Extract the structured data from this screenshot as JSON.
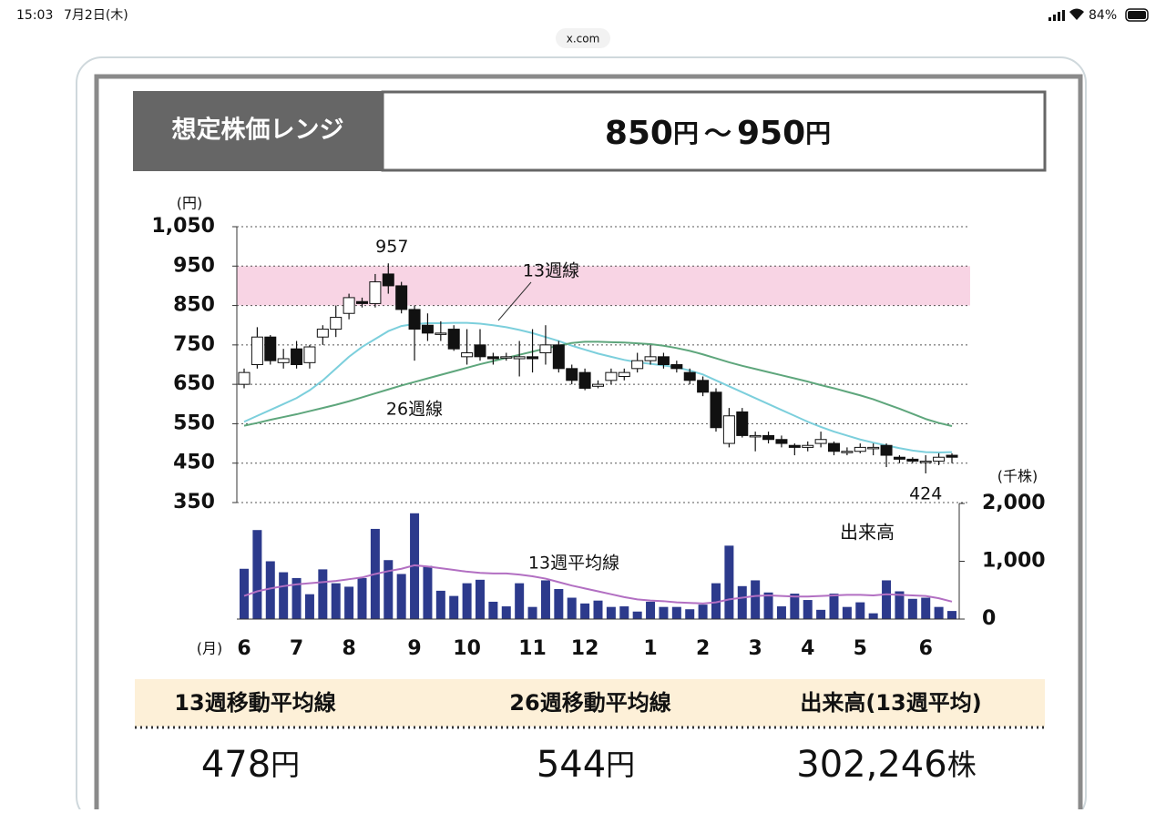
{
  "status_bar": {
    "time": "15:03",
    "date": "7月2日(木)",
    "battery": "84%"
  },
  "url": "x.com",
  "header": {
    "label": "想定株価レンジ",
    "low": "850",
    "low_unit": "円",
    "sep": "〜",
    "high": "950",
    "high_unit": "円"
  },
  "chart_data": [
    {
      "type": "candlestick",
      "y_unit": "(円)",
      "x_unit": "(月)",
      "categories": [
        "6",
        null,
        null,
        null,
        "7",
        null,
        null,
        null,
        "8",
        null,
        null,
        null,
        null,
        "9",
        null,
        null,
        null,
        "10",
        null,
        null,
        null,
        null,
        "11",
        null,
        null,
        null,
        "12",
        null,
        null,
        null,
        null,
        "1",
        null,
        null,
        null,
        "2",
        null,
        null,
        null,
        "3",
        null,
        null,
        null,
        "4",
        null,
        null,
        null,
        "5",
        null,
        null,
        null,
        null,
        "6",
        null,
        null
      ],
      "open": [
        650,
        700,
        770,
        705,
        740,
        705,
        770,
        790,
        830,
        860,
        855,
        930,
        900,
        840,
        800,
        780,
        790,
        720,
        750,
        720,
        720,
        715,
        720,
        730,
        750,
        690,
        680,
        645,
        660,
        670,
        690,
        710,
        720,
        700,
        680,
        660,
        630,
        500,
        580,
        520,
        520,
        510,
        495,
        490,
        500,
        500,
        480,
        480,
        490,
        495,
        465,
        460,
        455,
        455,
        470
      ],
      "close": [
        680,
        770,
        710,
        715,
        700,
        745,
        790,
        820,
        870,
        855,
        910,
        900,
        840,
        790,
        780,
        780,
        740,
        730,
        720,
        715,
        720,
        720,
        715,
        750,
        690,
        660,
        640,
        650,
        680,
        680,
        710,
        720,
        700,
        690,
        660,
        630,
        540,
        570,
        520,
        520,
        510,
        500,
        490,
        495,
        510,
        480,
        480,
        490,
        490,
        470,
        460,
        455,
        455,
        465,
        465
      ],
      "high": [
        690,
        795,
        775,
        740,
        760,
        750,
        800,
        850,
        880,
        870,
        930,
        957,
        910,
        850,
        830,
        810,
        800,
        790,
        790,
        730,
        730,
        760,
        790,
        800,
        760,
        700,
        690,
        660,
        690,
        690,
        730,
        750,
        730,
        710,
        690,
        670,
        640,
        590,
        590,
        530,
        530,
        520,
        500,
        505,
        530,
        505,
        490,
        500,
        500,
        500,
        470,
        465,
        470,
        475,
        475
      ],
      "low": [
        640,
        690,
        700,
        690,
        690,
        690,
        750,
        770,
        815,
        845,
        845,
        880,
        830,
        710,
        760,
        760,
        735,
        700,
        710,
        700,
        710,
        670,
        680,
        700,
        680,
        650,
        635,
        640,
        650,
        660,
        680,
        700,
        690,
        680,
        650,
        620,
        530,
        490,
        515,
        480,
        500,
        490,
        470,
        480,
        490,
        470,
        470,
        475,
        470,
        440,
        450,
        450,
        424,
        445,
        450
      ],
      "up_color": "#ffffff",
      "down_color": "#111111",
      "high_label": "957",
      "low_label": "424",
      "band": [
        850,
        950
      ],
      "band_color": "#f8d4e4",
      "series": [
        {
          "name": "13週線",
          "color": "#7ccfdc",
          "values": [
            555,
            570,
            585,
            600,
            615,
            635,
            660,
            690,
            720,
            745,
            765,
            785,
            798,
            803,
            805,
            805,
            806,
            806,
            804,
            800,
            795,
            788,
            780,
            770,
            760,
            748,
            738,
            728,
            720,
            712,
            706,
            702,
            698,
            693,
            685,
            675,
            660,
            645,
            630,
            615,
            600,
            585,
            570,
            555,
            542,
            530,
            520,
            510,
            502,
            495,
            488,
            482,
            478,
            477,
            478
          ]
        },
        {
          "name": "26週線",
          "color": "#5ea67c",
          "values": [
            545,
            552,
            560,
            567,
            574,
            582,
            590,
            598,
            607,
            617,
            627,
            637,
            647,
            656,
            665,
            674,
            683,
            692,
            701,
            709,
            717,
            725,
            733,
            741,
            748,
            755,
            758,
            758,
            757,
            756,
            754,
            752,
            748,
            742,
            735,
            726,
            716,
            706,
            697,
            689,
            681,
            673,
            665,
            657,
            648,
            640,
            631,
            622,
            612,
            600,
            588,
            575,
            562,
            552,
            544
          ]
        }
      ],
      "ylim": [
        350,
        1050
      ],
      "yticks": [
        350,
        450,
        550,
        650,
        750,
        850,
        950,
        {
          "value": 1050,
          "label": "1,050"
        }
      ],
      "grid": true
    },
    {
      "type": "bar",
      "title": "出来高",
      "y_unit": "(千株)",
      "values": [
        870,
        1540,
        1000,
        810,
        710,
        430,
        860,
        620,
        560,
        710,
        1560,
        1020,
        780,
        1830,
        920,
        490,
        400,
        620,
        680,
        300,
        220,
        620,
        210,
        670,
        520,
        370,
        270,
        320,
        210,
        220,
        130,
        300,
        210,
        210,
        170,
        250,
        620,
        1270,
        570,
        670,
        460,
        220,
        440,
        330,
        160,
        440,
        210,
        290,
        100,
        670,
        480,
        350,
        370,
        210,
        140
      ],
      "color": "#2c3a8c",
      "series": [
        {
          "name": "13週平均線",
          "color": "#b26fc2",
          "values": [
            400,
            480,
            530,
            570,
            600,
            620,
            640,
            660,
            690,
            720,
            780,
            830,
            870,
            930,
            910,
            880,
            850,
            820,
            800,
            790,
            790,
            770,
            740,
            700,
            640,
            580,
            530,
            480,
            430,
            380,
            340,
            320,
            310,
            290,
            280,
            270,
            290,
            340,
            370,
            400,
            410,
            400,
            390,
            390,
            400,
            410,
            420,
            420,
            410,
            430,
            420,
            410,
            400,
            360,
            302
          ]
        }
      ],
      "ylim": [
        0,
        2000
      ],
      "yticks": [
        0,
        {
          "value": 1000,
          "label": "1,000"
        },
        {
          "value": 2000,
          "label": "2,000"
        }
      ]
    }
  ],
  "summary": {
    "headers": [
      "13週移動平均線",
      "26週移動平均線",
      "出来高(13週平均)"
    ],
    "values": [
      {
        "value": "478",
        "unit": "円"
      },
      {
        "value": "544",
        "unit": "円"
      },
      {
        "value": "302,246",
        "unit": "株"
      }
    ]
  }
}
